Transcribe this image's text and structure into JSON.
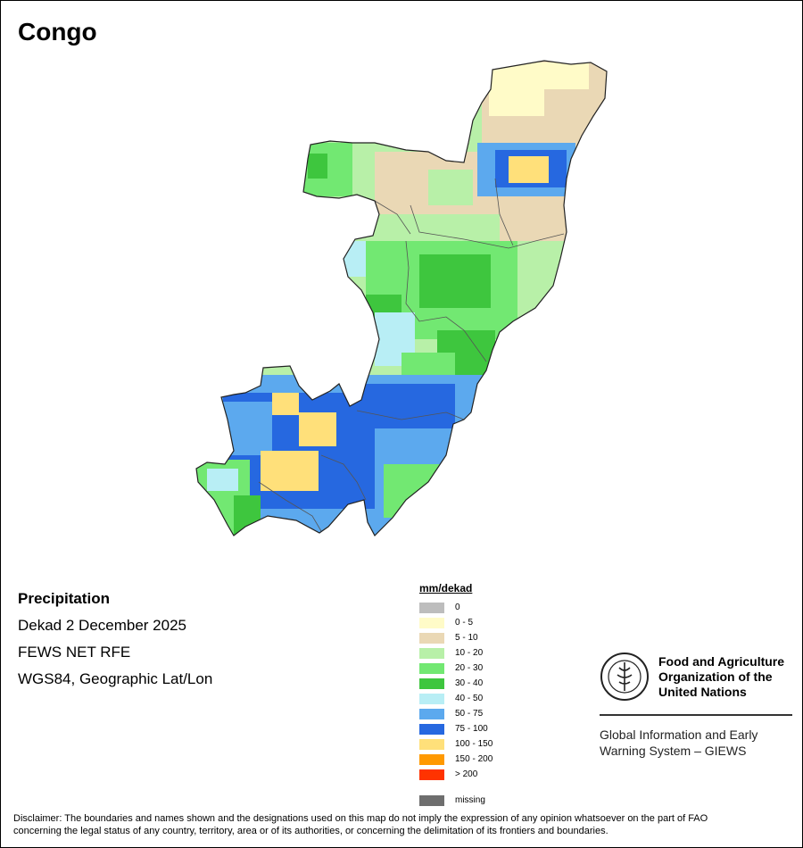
{
  "title": "Congo",
  "info": {
    "heading": "Precipitation",
    "period": "Dekad 2 December 2025",
    "source": "FEWS NET RFE",
    "projection": "WGS84, Geographic Lat/Lon"
  },
  "legend": {
    "title": "mm/dekad",
    "items": [
      {
        "label": "0",
        "color": "#bdbdbd"
      },
      {
        "label": "0 - 5",
        "color": "#fffbc8"
      },
      {
        "label": "5 - 10",
        "color": "#ead8b5"
      },
      {
        "label": "10 - 20",
        "color": "#b8f0a8"
      },
      {
        "label": "20 - 30",
        "color": "#72e872"
      },
      {
        "label": "30 - 40",
        "color": "#3ec63e"
      },
      {
        "label": "40 - 50",
        "color": "#b8eef5"
      },
      {
        "label": "50 - 75",
        "color": "#5ca9ee"
      },
      {
        "label": "75 - 100",
        "color": "#2668e0"
      },
      {
        "label": "100 - 150",
        "color": "#ffe07a"
      },
      {
        "label": "150 - 200",
        "color": "#ff9900"
      },
      {
        "label": "> 200",
        "color": "#ff3300"
      }
    ],
    "missing": {
      "label": "missing",
      "color": "#6e6e6e"
    }
  },
  "fao": {
    "line1": "Food and Agriculture",
    "line2": "Organization of the",
    "line3": "United Nations",
    "giews1": "Global Information and Early",
    "giews2": "Warning System – GIEWS"
  },
  "disclaimer": {
    "line1": "Disclaimer: The boundaries and names shown and the designations used on this map do not imply the expression of any opinion whatsoever on the part of FAO",
    "line2": "concerning the legal status of any country, territory, area or of its authorities, or concerning the delimitation of its frontiers and boundaries."
  }
}
